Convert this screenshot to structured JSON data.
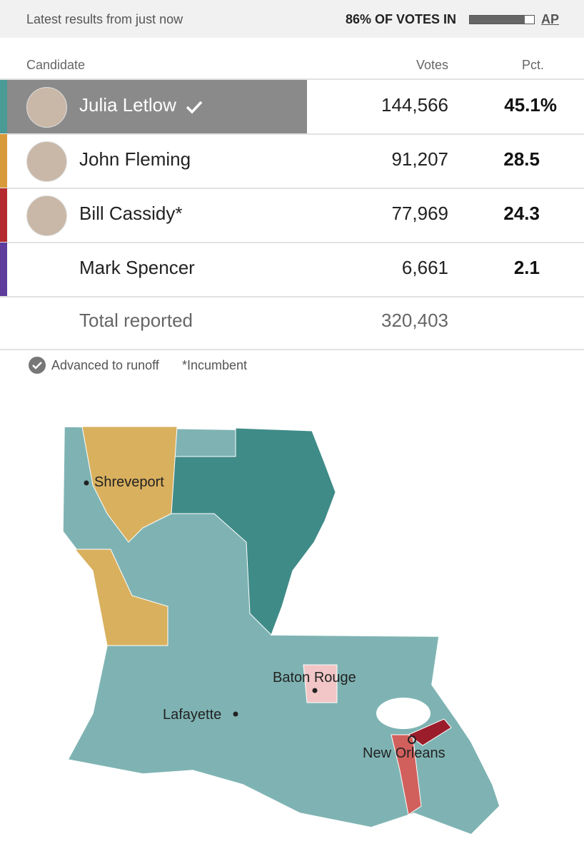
{
  "header": {
    "status": "Latest results from just now",
    "votes_in": "86% OF VOTES IN",
    "votes_in_pct": 86,
    "source": "AP"
  },
  "table": {
    "columns": [
      "Candidate",
      "Votes",
      "Pct."
    ],
    "rows": [
      [
        "Julia Letlow",
        "144,566",
        "45.1%"
      ],
      [
        "John Fleming",
        "91,207",
        "28.5"
      ],
      [
        "Bill Cassidy*",
        "77,969",
        "24.3"
      ],
      [
        "Mark Spencer",
        "6,661",
        "2.1"
      ]
    ],
    "total": [
      "Total reported",
      "320,403"
    ]
  },
  "legend": [
    "Advanced to runoff",
    "*Incumbent"
  ],
  "map": {
    "cities": [
      "Shreveport",
      "Baton Rouge",
      "Lafayette",
      "New Orleans"
    ]
  }
}
